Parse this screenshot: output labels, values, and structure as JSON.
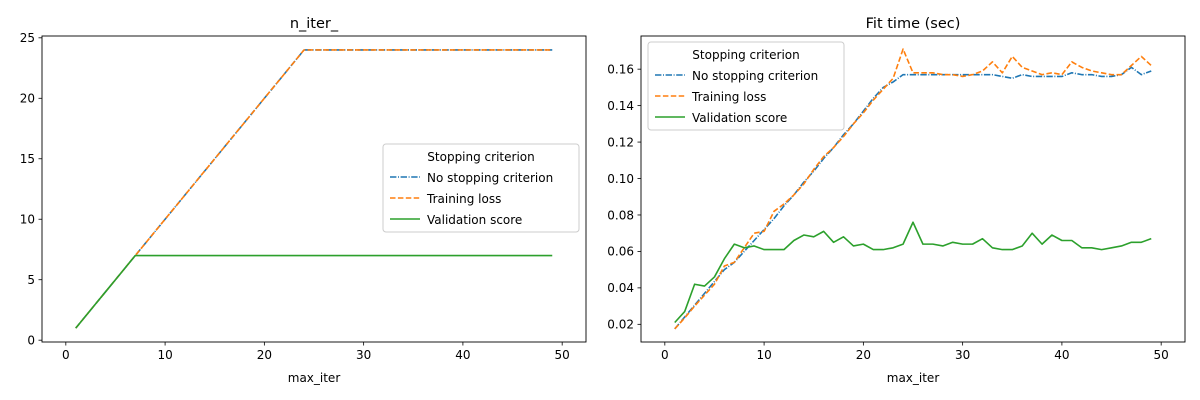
{
  "chart_data": [
    {
      "type": "line",
      "title": "n_iter_",
      "xlabel": "max_iter",
      "ylabel": "",
      "xlim": [
        -2.4,
        52.4
      ],
      "ylim": [
        -0.15,
        25.15
      ],
      "xticks": [
        0,
        10,
        20,
        30,
        40,
        50
      ],
      "yticks": [
        0,
        5,
        10,
        15,
        20,
        25
      ],
      "grid": false,
      "legend_title": "Stopping criterion",
      "legend_position": "center-right",
      "x": [
        1,
        2,
        3,
        4,
        5,
        6,
        7,
        8,
        9,
        10,
        11,
        12,
        13,
        14,
        15,
        16,
        17,
        18,
        19,
        20,
        21,
        22,
        23,
        24,
        25,
        26,
        27,
        28,
        29,
        30,
        31,
        32,
        33,
        34,
        35,
        36,
        37,
        38,
        39,
        40,
        41,
        42,
        43,
        44,
        45,
        46,
        47,
        48,
        49
      ],
      "series": [
        {
          "name": "No stopping criterion",
          "color": "#1f77b4",
          "style": "dashdot",
          "values": [
            1,
            2,
            3,
            4,
            5,
            6,
            7,
            8,
            9,
            10,
            11,
            12,
            13,
            14,
            15,
            16,
            17,
            18,
            19,
            20,
            21,
            22,
            23,
            24,
            24,
            24,
            24,
            24,
            24,
            24,
            24,
            24,
            24,
            24,
            24,
            24,
            24,
            24,
            24,
            24,
            24,
            24,
            24,
            24,
            24,
            24,
            24,
            24,
            24
          ]
        },
        {
          "name": "Training loss",
          "color": "#ff7f0e",
          "style": "dashed",
          "values": [
            1,
            2,
            3,
            4,
            5,
            6,
            7,
            8,
            9,
            10,
            11,
            12,
            13,
            14,
            15,
            16,
            17,
            18,
            19,
            20,
            21,
            22,
            23,
            24,
            24,
            24,
            24,
            24,
            24,
            24,
            24,
            24,
            24,
            24,
            24,
            24,
            24,
            24,
            24,
            24,
            24,
            24,
            24,
            24,
            24,
            24,
            24,
            24,
            24
          ]
        },
        {
          "name": "Validation score",
          "color": "#2ca02c",
          "style": "solid",
          "values": [
            1,
            2,
            3,
            4,
            5,
            6,
            7,
            7,
            7,
            7,
            7,
            7,
            7,
            7,
            7,
            7,
            7,
            7,
            7,
            7,
            7,
            7,
            7,
            7,
            7,
            7,
            7,
            7,
            7,
            7,
            7,
            7,
            7,
            7,
            7,
            7,
            7,
            7,
            7,
            7,
            7,
            7,
            7,
            7,
            7,
            7,
            7,
            7,
            7
          ]
        }
      ]
    },
    {
      "type": "line",
      "title": "Fit time (sec)",
      "xlabel": "max_iter",
      "ylabel": "",
      "xlim": [
        -2.4,
        52.4
      ],
      "ylim": [
        0.0103,
        0.1782
      ],
      "xticks": [
        0,
        10,
        20,
        30,
        40,
        50
      ],
      "yticks": [
        0.02,
        0.04,
        0.06,
        0.08,
        0.1,
        0.12,
        0.14,
        0.16
      ],
      "ytick_labels": [
        "0.02",
        "0.04",
        "0.06",
        "0.08",
        "0.10",
        "0.12",
        "0.14",
        "0.16"
      ],
      "grid": false,
      "legend_title": "Stopping criterion",
      "legend_position": "upper-left",
      "x": [
        1,
        2,
        3,
        4,
        5,
        6,
        7,
        8,
        9,
        10,
        11,
        12,
        13,
        14,
        15,
        16,
        17,
        18,
        19,
        20,
        21,
        22,
        23,
        24,
        25,
        26,
        27,
        28,
        29,
        30,
        31,
        32,
        33,
        34,
        35,
        36,
        37,
        38,
        39,
        40,
        41,
        42,
        43,
        44,
        45,
        46,
        47,
        48,
        49
      ],
      "series": [
        {
          "name": "No stopping criterion",
          "color": "#1f77b4",
          "style": "dashdot",
          "values": [
            0.0175,
            0.024,
            0.0305,
            0.037,
            0.0435,
            0.05,
            0.054,
            0.06,
            0.066,
            0.072,
            0.078,
            0.085,
            0.091,
            0.098,
            0.104,
            0.111,
            0.117,
            0.124,
            0.13,
            0.137,
            0.144,
            0.15,
            0.153,
            0.157,
            0.157,
            0.157,
            0.157,
            0.157,
            0.157,
            0.157,
            0.157,
            0.157,
            0.157,
            0.156,
            0.155,
            0.157,
            0.156,
            0.156,
            0.156,
            0.156,
            0.158,
            0.157,
            0.157,
            0.156,
            0.156,
            0.157,
            0.161,
            0.157,
            0.159
          ]
        },
        {
          "name": "Training loss",
          "color": "#ff7f0e",
          "style": "dashed",
          "values": [
            0.0175,
            0.0235,
            0.03,
            0.036,
            0.042,
            0.052,
            0.054,
            0.062,
            0.07,
            0.071,
            0.082,
            0.086,
            0.091,
            0.097,
            0.105,
            0.112,
            0.117,
            0.123,
            0.13,
            0.136,
            0.143,
            0.149,
            0.155,
            0.171,
            0.158,
            0.158,
            0.158,
            0.157,
            0.157,
            0.156,
            0.157,
            0.159,
            0.164,
            0.158,
            0.167,
            0.161,
            0.159,
            0.157,
            0.158,
            0.157,
            0.164,
            0.161,
            0.159,
            0.158,
            0.157,
            0.157,
            0.162,
            0.167,
            0.162
          ]
        },
        {
          "name": "Validation score",
          "color": "#2ca02c",
          "style": "solid",
          "values": [
            0.021,
            0.027,
            0.042,
            0.041,
            0.046,
            0.056,
            0.064,
            0.062,
            0.063,
            0.061,
            0.061,
            0.061,
            0.066,
            0.069,
            0.068,
            0.071,
            0.065,
            0.068,
            0.063,
            0.064,
            0.061,
            0.061,
            0.062,
            0.064,
            0.076,
            0.064,
            0.064,
            0.063,
            0.065,
            0.064,
            0.064,
            0.067,
            0.062,
            0.061,
            0.061,
            0.063,
            0.07,
            0.064,
            0.069,
            0.066,
            0.066,
            0.062,
            0.062,
            0.061,
            0.062,
            0.063,
            0.065,
            0.065,
            0.067
          ]
        }
      ]
    }
  ]
}
